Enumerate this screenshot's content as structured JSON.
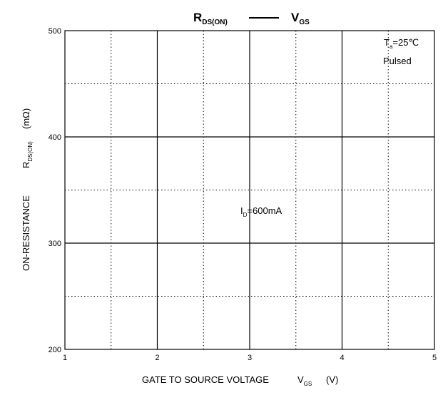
{
  "chart_data": {
    "type": "line",
    "title": {
      "left_main": "R",
      "left_sub": "DS(ON)",
      "right_main": "V",
      "right_sub": "GS"
    },
    "xlabel": {
      "main": "GATE TO SOURCE VOLTAGE",
      "symbol": "V",
      "symbol_sub": "GS",
      "unit": "(V)"
    },
    "ylabel": {
      "main": "ON-RESISTANCE",
      "symbol": "R",
      "symbol_sub": "DS(ON)",
      "unit": "(mΩ)"
    },
    "xlim": [
      1,
      5
    ],
    "ylim": [
      200,
      500
    ],
    "x_ticks": [
      1,
      2,
      3,
      4,
      5
    ],
    "y_ticks": [
      200,
      300,
      400,
      500
    ],
    "x_tick_labels": [
      "1",
      "2",
      "3",
      "4",
      "5"
    ],
    "y_tick_labels": [
      "200",
      "300",
      "400",
      "500"
    ],
    "x_minor_grid": [
      1.5,
      2.5,
      3.5,
      4.5
    ],
    "y_minor_grid": [
      250,
      350,
      450
    ],
    "grid": true,
    "annotations": {
      "conditions_line1_main": "T",
      "conditions_line1_sub": "a",
      "conditions_line1_rest": "=25℃",
      "conditions_line2": "Pulsed",
      "series_label_main": "I",
      "series_label_sub": "D",
      "series_label_rest": "=600mA"
    },
    "series": []
  }
}
